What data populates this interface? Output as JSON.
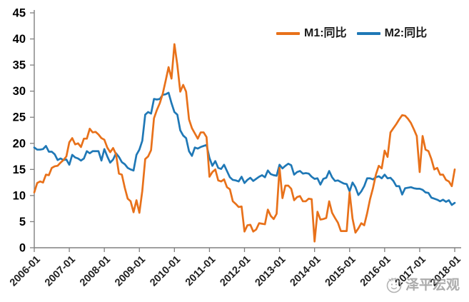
{
  "chart_data": {
    "type": "line",
    "title": "",
    "xlabel": "",
    "ylabel": "",
    "x_unit": "month",
    "x_range": [
      "2006-01",
      "2018-01"
    ],
    "points_per_series": 145,
    "ylim": [
      0,
      45
    ],
    "y_ticks": [
      0,
      5,
      10,
      15,
      20,
      25,
      30,
      35,
      40,
      45
    ],
    "x_tick_labels": [
      "2006-01",
      "2007-01",
      "2008-01",
      "2009-01",
      "2010-01",
      "2011-01",
      "2012-01",
      "2013-01",
      "2014-01",
      "2015-01",
      "2016-01",
      "2017-01",
      "2018-01"
    ],
    "grid": false,
    "legend_position": "top-right-inside",
    "axis_color": "#808080",
    "series": [
      {
        "name": "M1:同比",
        "color": "#E8711A",
        "values": [
          10.6,
          12.4,
          12.7,
          12.5,
          14.0,
          13.9,
          15.3,
          15.6,
          15.7,
          16.3,
          16.8,
          17.5,
          20.2,
          21.0,
          19.8,
          20.0,
          19.3,
          20.9,
          20.9,
          22.8,
          22.1,
          22.2,
          21.7,
          21.0,
          20.7,
          19.2,
          18.3,
          19.1,
          17.9,
          14.2,
          14.0,
          11.5,
          9.4,
          8.9,
          6.8,
          9.1,
          6.7,
          10.9,
          17.0,
          17.5,
          18.7,
          24.8,
          26.4,
          27.7,
          29.5,
          32.0,
          34.6,
          32.4,
          39.0,
          35.0,
          29.9,
          31.2,
          29.9,
          24.6,
          22.9,
          21.9,
          20.9,
          22.1,
          22.1,
          21.2,
          13.6,
          14.5,
          15.0,
          12.9,
          12.7,
          13.1,
          11.6,
          11.2,
          8.9,
          8.4,
          7.8,
          7.9,
          3.1,
          4.3,
          4.4,
          3.1,
          3.5,
          4.7,
          4.6,
          4.5,
          7.3,
          6.1,
          5.5,
          6.5,
          15.3,
          9.5,
          11.9,
          11.9,
          11.3,
          9.1,
          9.7,
          9.9,
          8.9,
          8.9,
          9.4,
          9.3,
          1.2,
          6.9,
          5.4,
          5.5,
          5.7,
          8.9,
          6.7,
          5.7,
          4.8,
          3.2,
          3.2,
          3.2,
          10.6,
          5.6,
          2.9,
          3.7,
          4.7,
          4.3,
          6.6,
          9.3,
          11.4,
          14.0,
          15.7,
          15.2,
          18.6,
          17.4,
          22.1,
          22.9,
          23.7,
          24.6,
          25.4,
          25.3,
          24.7,
          23.9,
          22.7,
          21.4,
          14.5,
          21.4,
          18.8,
          18.5,
          17.0,
          15.0,
          15.3,
          14.0,
          14.0,
          13.0,
          12.7,
          11.8,
          15.0
        ]
      },
      {
        "name": "M2:同比",
        "color": "#1F78B6",
        "values": [
          19.2,
          18.8,
          18.8,
          18.9,
          19.5,
          18.4,
          18.4,
          17.9,
          16.8,
          17.1,
          16.8,
          16.9,
          15.9,
          17.8,
          17.3,
          17.1,
          16.7,
          17.1,
          18.5,
          18.1,
          18.5,
          18.5,
          18.5,
          16.7,
          18.9,
          17.5,
          16.3,
          16.9,
          18.1,
          17.4,
          16.4,
          16.0,
          15.3,
          15.0,
          14.8,
          17.8,
          18.8,
          20.5,
          25.5,
          26.0,
          25.7,
          28.5,
          28.4,
          28.5,
          29.3,
          29.4,
          29.7,
          27.7,
          26.0,
          25.5,
          22.5,
          21.5,
          21.0,
          18.5,
          17.6,
          19.2,
          19.0,
          19.3,
          19.5,
          19.7,
          17.2,
          15.7,
          16.6,
          15.3,
          15.1,
          15.9,
          14.7,
          13.5,
          13.0,
          12.9,
          12.7,
          13.6,
          12.4,
          13.0,
          13.4,
          12.8,
          13.2,
          13.6,
          13.9,
          13.5,
          14.8,
          14.1,
          13.9,
          13.8,
          15.9,
          15.2,
          15.7,
          16.1,
          15.8,
          14.0,
          14.5,
          14.7,
          14.2,
          14.3,
          14.2,
          13.6,
          13.2,
          13.3,
          12.1,
          13.2,
          13.4,
          14.7,
          13.5,
          12.8,
          12.9,
          12.6,
          12.3,
          12.2,
          10.8,
          12.5,
          11.6,
          10.1,
          10.8,
          11.8,
          13.3,
          13.3,
          13.1,
          13.5,
          13.7,
          13.3,
          14.0,
          13.3,
          13.4,
          12.8,
          11.8,
          11.8,
          10.2,
          11.4,
          11.5,
          11.6,
          11.4,
          11.3,
          11.3,
          11.1,
          10.6,
          10.5,
          9.6,
          9.4,
          9.2,
          8.9,
          9.2,
          8.8,
          9.1,
          8.2,
          8.6
        ]
      }
    ]
  },
  "legend": {
    "m1_label": "M1:同比",
    "m2_label": "M2:同比"
  },
  "watermark": {
    "text": "泽平宏观",
    "logo": "zeping-macro-logo-icon",
    "color": "#8f8f8f"
  }
}
